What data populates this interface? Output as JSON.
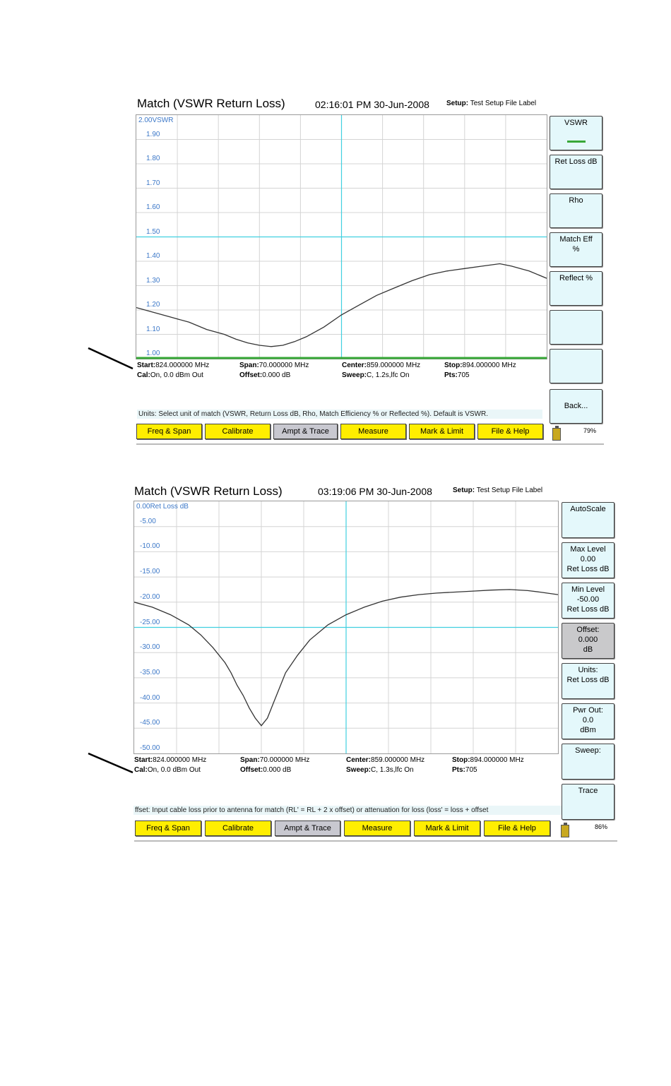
{
  "screen1": {
    "title": "Match (VSWR  Return Loss)",
    "timestamp": "02:16:01 PM 30-Jun-2008",
    "setup_label": "Setup:",
    "setup_value": "Test Setup File Label",
    "y_top_label": "2.00VSWR",
    "y_ticks": [
      "1.90",
      "1.80",
      "1.70",
      "1.60",
      "1.50",
      "1.40",
      "1.30",
      "1.20",
      "1.10",
      "1.00"
    ],
    "info": {
      "start_label": "Start:",
      "start_value": "824.000000 MHz",
      "span_label": "Span:",
      "span_value": "70.000000 MHz",
      "center_label": "Center:",
      "center_value": "859.000000 MHz",
      "stop_label": "Stop:",
      "stop_value": "894.000000 MHz",
      "cal_label": "Cal:",
      "cal_value": "On, 0.0 dBm Out",
      "offset_label": "Offset:",
      "offset_value": "0.000 dB",
      "sweep_label": "Sweep:",
      "sweep_value": "C,   1.2s,lfc On",
      "pts_label": "Pts:",
      "pts_value": "705"
    },
    "softkeys": [
      {
        "line1": "VSWR",
        "line2": "",
        "line3": ""
      },
      {
        "line1": "Ret Loss dB",
        "line2": "",
        "line3": ""
      },
      {
        "line1": "Rho",
        "line2": "",
        "line3": ""
      },
      {
        "line1": "Match Eff",
        "line2": "%",
        "line3": ""
      },
      {
        "line1": "Reflect %",
        "line2": "",
        "line3": ""
      },
      {
        "line1": "",
        "line2": "",
        "line3": ""
      },
      {
        "line1": "",
        "line2": "",
        "line3": ""
      },
      {
        "line1": "Back...",
        "line2": "",
        "line3": ""
      }
    ],
    "help_text": "Units: Select unit of match (VSWR, Return Loss dB, Rho, Match Efficiency % or Reflected %). Default is VSWR.",
    "menu": [
      "Freq & Span",
      "Calibrate",
      "Ampt &  Trace",
      "Measure",
      "Mark & Limit",
      "File & Help"
    ],
    "battery": "79%",
    "chart_data": {
      "type": "line",
      "xlabel": "",
      "ylabel": "",
      "xlim": [
        824,
        894
      ],
      "ylim": [
        1.0,
        2.0
      ],
      "series": [
        {
          "x": [
            824,
            827,
            830,
            833,
            836,
            839,
            841,
            843,
            845,
            847,
            849,
            851,
            853,
            856,
            859,
            862,
            865,
            868,
            871,
            874,
            877,
            880,
            883,
            886,
            888,
            891,
            894
          ],
          "y": [
            1.21,
            1.19,
            1.17,
            1.15,
            1.12,
            1.1,
            1.08,
            1.065,
            1.055,
            1.05,
            1.055,
            1.07,
            1.09,
            1.13,
            1.18,
            1.22,
            1.26,
            1.29,
            1.32,
            1.345,
            1.36,
            1.37,
            1.38,
            1.39,
            1.38,
            1.36,
            1.33
          ]
        }
      ],
      "markers": {
        "x": 859,
        "y": 1.5
      }
    }
  },
  "screen2": {
    "title": "Match (VSWR  Return Loss)",
    "timestamp": "03:19:06 PM 30-Jun-2008",
    "setup_label": "Setup:",
    "setup_value": "Test Setup File Label",
    "y_top_label": "0.00Ret Loss dB",
    "y_ticks": [
      "-5.00",
      "-10.00",
      "-15.00",
      "-20.00",
      "-25.00",
      "-30.00",
      "-35.00",
      "-40.00",
      "-45.00",
      "-50.00"
    ],
    "info": {
      "start_label": "Start:",
      "start_value": "824.000000 MHz",
      "span_label": "Span:",
      "span_value": "70.000000 MHz",
      "center_label": "Center:",
      "center_value": "859.000000 MHz",
      "stop_label": "Stop:",
      "stop_value": "894.000000 MHz",
      "cal_label": "Cal:",
      "cal_value": "On, 0.0 dBm Out",
      "offset_label": "Offset:",
      "offset_value": "0.000 dB",
      "sweep_label": "Sweep:",
      "sweep_value": "C,   1.3s,lfc On",
      "pts_label": "Pts:",
      "pts_value": "705"
    },
    "softkeys": [
      {
        "line1": "AutoScale",
        "line2": "",
        "line3": ""
      },
      {
        "line1": "Max Level",
        "line2": "0.00",
        "line3": "Ret Loss dB"
      },
      {
        "line1": "Min Level",
        "line2": "-50.00",
        "line3": "Ret Loss dB"
      },
      {
        "line1": "Offset:",
        "line2": "0.000",
        "line3": "dB"
      },
      {
        "line1": "Units:",
        "line2": "Ret Loss dB",
        "line3": ""
      },
      {
        "line1": "Pwr Out:",
        "line2": "0.0",
        "line3": "dBm"
      },
      {
        "line1": "Sweep:",
        "line2": "",
        "line3": ""
      },
      {
        "line1": "Trace",
        "line2": "",
        "line3": ""
      }
    ],
    "help_text": "ffset: Input cable loss prior to antenna for match (RL' = RL + 2 x offset) or attenuation for loss (loss' = loss + offset",
    "menu": [
      "Freq & Span",
      "Calibrate",
      "Ampt &  Trace",
      "Measure",
      "Mark & Limit",
      "File & Help"
    ],
    "battery": "86%",
    "chart_data": {
      "type": "line",
      "xlabel": "",
      "ylabel": "",
      "xlim": [
        824,
        894
      ],
      "ylim": [
        -50,
        0
      ],
      "series": [
        {
          "x": [
            824,
            827,
            830,
            833,
            835,
            837,
            839,
            840,
            841,
            842,
            843,
            844,
            845,
            846,
            847,
            848,
            849,
            851,
            853,
            856,
            859,
            862,
            865,
            868,
            871,
            874,
            877,
            880,
            883,
            886,
            889,
            891,
            894
          ],
          "y": [
            -20,
            -21,
            -22.5,
            -24.5,
            -26.5,
            -29,
            -32,
            -34,
            -36.5,
            -38.5,
            -41,
            -43,
            -44.5,
            -43,
            -40,
            -37,
            -34,
            -30.5,
            -27.5,
            -24.5,
            -22.5,
            -21,
            -19.8,
            -19,
            -18.5,
            -18.2,
            -18,
            -17.8,
            -17.6,
            -17.5,
            -17.7,
            -18,
            -18.5
          ]
        }
      ],
      "markers": {
        "x": 859,
        "y": -25
      }
    }
  }
}
